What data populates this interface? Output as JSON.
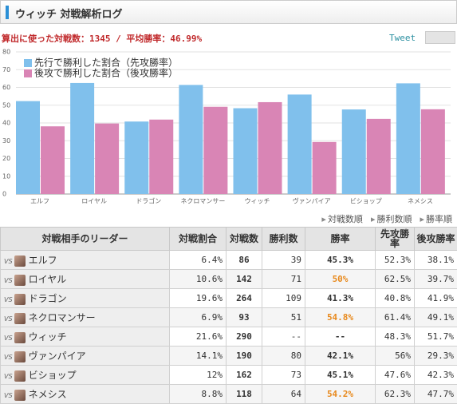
{
  "header": {
    "title": "ウィッチ 対戦解析ログ",
    "tweet": "Tweet"
  },
  "summary": "算出に使った対戦数：1345 / 平均勝率：46.99%",
  "chart_data": {
    "type": "bar",
    "categories": [
      "エルフ",
      "ロイヤル",
      "ドラゴン",
      "ネクロマンサー",
      "ウィッチ",
      "ヴァンパイア",
      "ビショップ",
      "ネメシス"
    ],
    "series": [
      {
        "name": "先行で勝利した割合（先攻勝率）",
        "color": "#80c0ec",
        "values": [
          52.3,
          62.5,
          40.8,
          61.4,
          48.3,
          56,
          47.6,
          62.3
        ]
      },
      {
        "name": "後攻で勝利した割合（後攻勝率）",
        "color": "#d985b5",
        "values": [
          38.1,
          39.7,
          41.9,
          49.1,
          51.7,
          29.3,
          42.3,
          47.7
        ]
      }
    ],
    "ylim": [
      0,
      80
    ],
    "yticks": [
      0,
      10,
      20,
      30,
      40,
      50,
      60,
      70,
      80
    ],
    "grid": true,
    "legend": "top-left"
  },
  "sort_buttons": [
    "対戦数順",
    "勝利数順",
    "勝率順"
  ],
  "table": {
    "columns": [
      "対戦相手のリーダー",
      "対戦割合",
      "対戦数",
      "勝利数",
      "勝率",
      "先攻勝率",
      "後攻勝率"
    ],
    "vs_label": "VS",
    "highlight_color": "#e8891c",
    "rows": [
      {
        "leader": "エルフ",
        "cells": [
          "6.4%",
          "86",
          "39",
          "45.3%",
          "52.3%",
          "38.1%"
        ],
        "highlight": false
      },
      {
        "leader": "ロイヤル",
        "cells": [
          "10.6%",
          "142",
          "71",
          "50%",
          "62.5%",
          "39.7%"
        ],
        "highlight": true
      },
      {
        "leader": "ドラゴン",
        "cells": [
          "19.6%",
          "264",
          "109",
          "41.3%",
          "40.8%",
          "41.9%"
        ],
        "highlight": false
      },
      {
        "leader": "ネクロマンサー",
        "cells": [
          "6.9%",
          "93",
          "51",
          "54.8%",
          "61.4%",
          "49.1%"
        ],
        "highlight": true
      },
      {
        "leader": "ウィッチ",
        "cells": [
          "21.6%",
          "290",
          "--",
          "--",
          "48.3%",
          "51.7%"
        ],
        "highlight": false
      },
      {
        "leader": "ヴァンパイア",
        "cells": [
          "14.1%",
          "190",
          "80",
          "42.1%",
          "56%",
          "29.3%"
        ],
        "highlight": false
      },
      {
        "leader": "ビショップ",
        "cells": [
          "12%",
          "162",
          "73",
          "45.1%",
          "47.6%",
          "42.3%"
        ],
        "highlight": false
      },
      {
        "leader": "ネメシス",
        "cells": [
          "8.8%",
          "118",
          "64",
          "54.2%",
          "62.3%",
          "47.7%"
        ],
        "highlight": true
      }
    ]
  }
}
